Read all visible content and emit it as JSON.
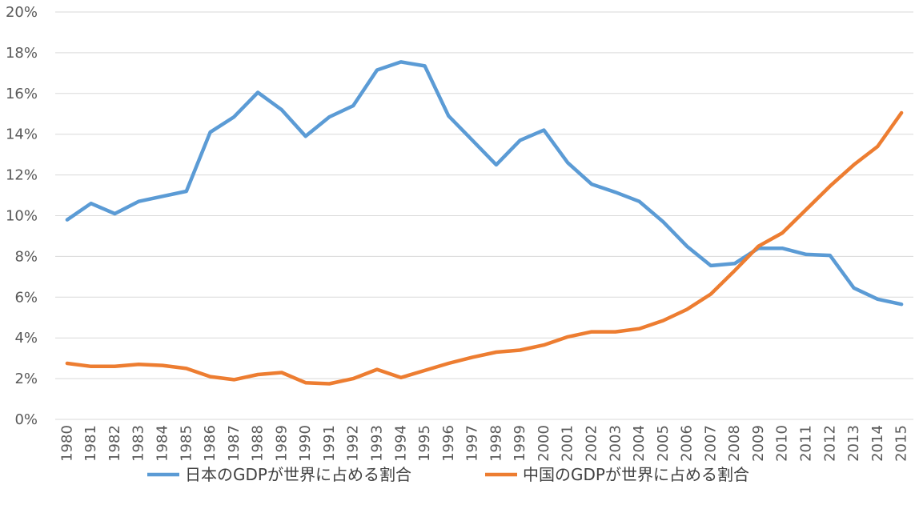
{
  "chart_data": {
    "type": "line",
    "title": "",
    "xlabel": "",
    "ylabel": "",
    "ylim": [
      0,
      20
    ],
    "y_ticks": [
      "0%",
      "2%",
      "4%",
      "6%",
      "8%",
      "10%",
      "12%",
      "14%",
      "16%",
      "18%",
      "20%"
    ],
    "grid": true,
    "legend_position": "bottom",
    "x": [
      "1980",
      "1981",
      "1982",
      "1983",
      "1984",
      "1985",
      "1986",
      "1987",
      "1988",
      "1989",
      "1990",
      "1991",
      "1992",
      "1993",
      "1994",
      "1995",
      "1996",
      "1997",
      "1998",
      "1999",
      "2000",
      "2001",
      "2002",
      "2003",
      "2004",
      "2005",
      "2006",
      "2007",
      "2008",
      "2009",
      "2010",
      "2011",
      "2012",
      "2013",
      "2014",
      "2015"
    ],
    "series": [
      {
        "name": "日本のGDPが世界に占める割合",
        "color": "#5b9bd5",
        "values": [
          9.8,
          10.6,
          10.1,
          10.7,
          10.95,
          11.2,
          14.1,
          14.85,
          16.05,
          15.2,
          13.9,
          14.85,
          15.4,
          17.15,
          17.55,
          17.35,
          14.9,
          13.7,
          12.5,
          13.7,
          14.2,
          12.6,
          11.55,
          11.15,
          10.7,
          9.7,
          8.5,
          7.55,
          7.65,
          8.4,
          8.4,
          8.1,
          8.05,
          6.45,
          5.9,
          5.65
        ]
      },
      {
        "name": "中国のGDPが世界に占める割合",
        "color": "#ed7d31",
        "values": [
          2.75,
          2.6,
          2.6,
          2.7,
          2.65,
          2.5,
          2.1,
          1.95,
          2.2,
          2.3,
          1.8,
          1.75,
          2.0,
          2.45,
          2.05,
          2.4,
          2.75,
          3.05,
          3.3,
          3.4,
          3.65,
          4.05,
          4.3,
          4.3,
          4.45,
          4.85,
          5.4,
          6.15,
          7.3,
          8.5,
          9.15,
          10.3,
          11.45,
          12.5,
          13.4,
          15.05
        ]
      }
    ]
  }
}
